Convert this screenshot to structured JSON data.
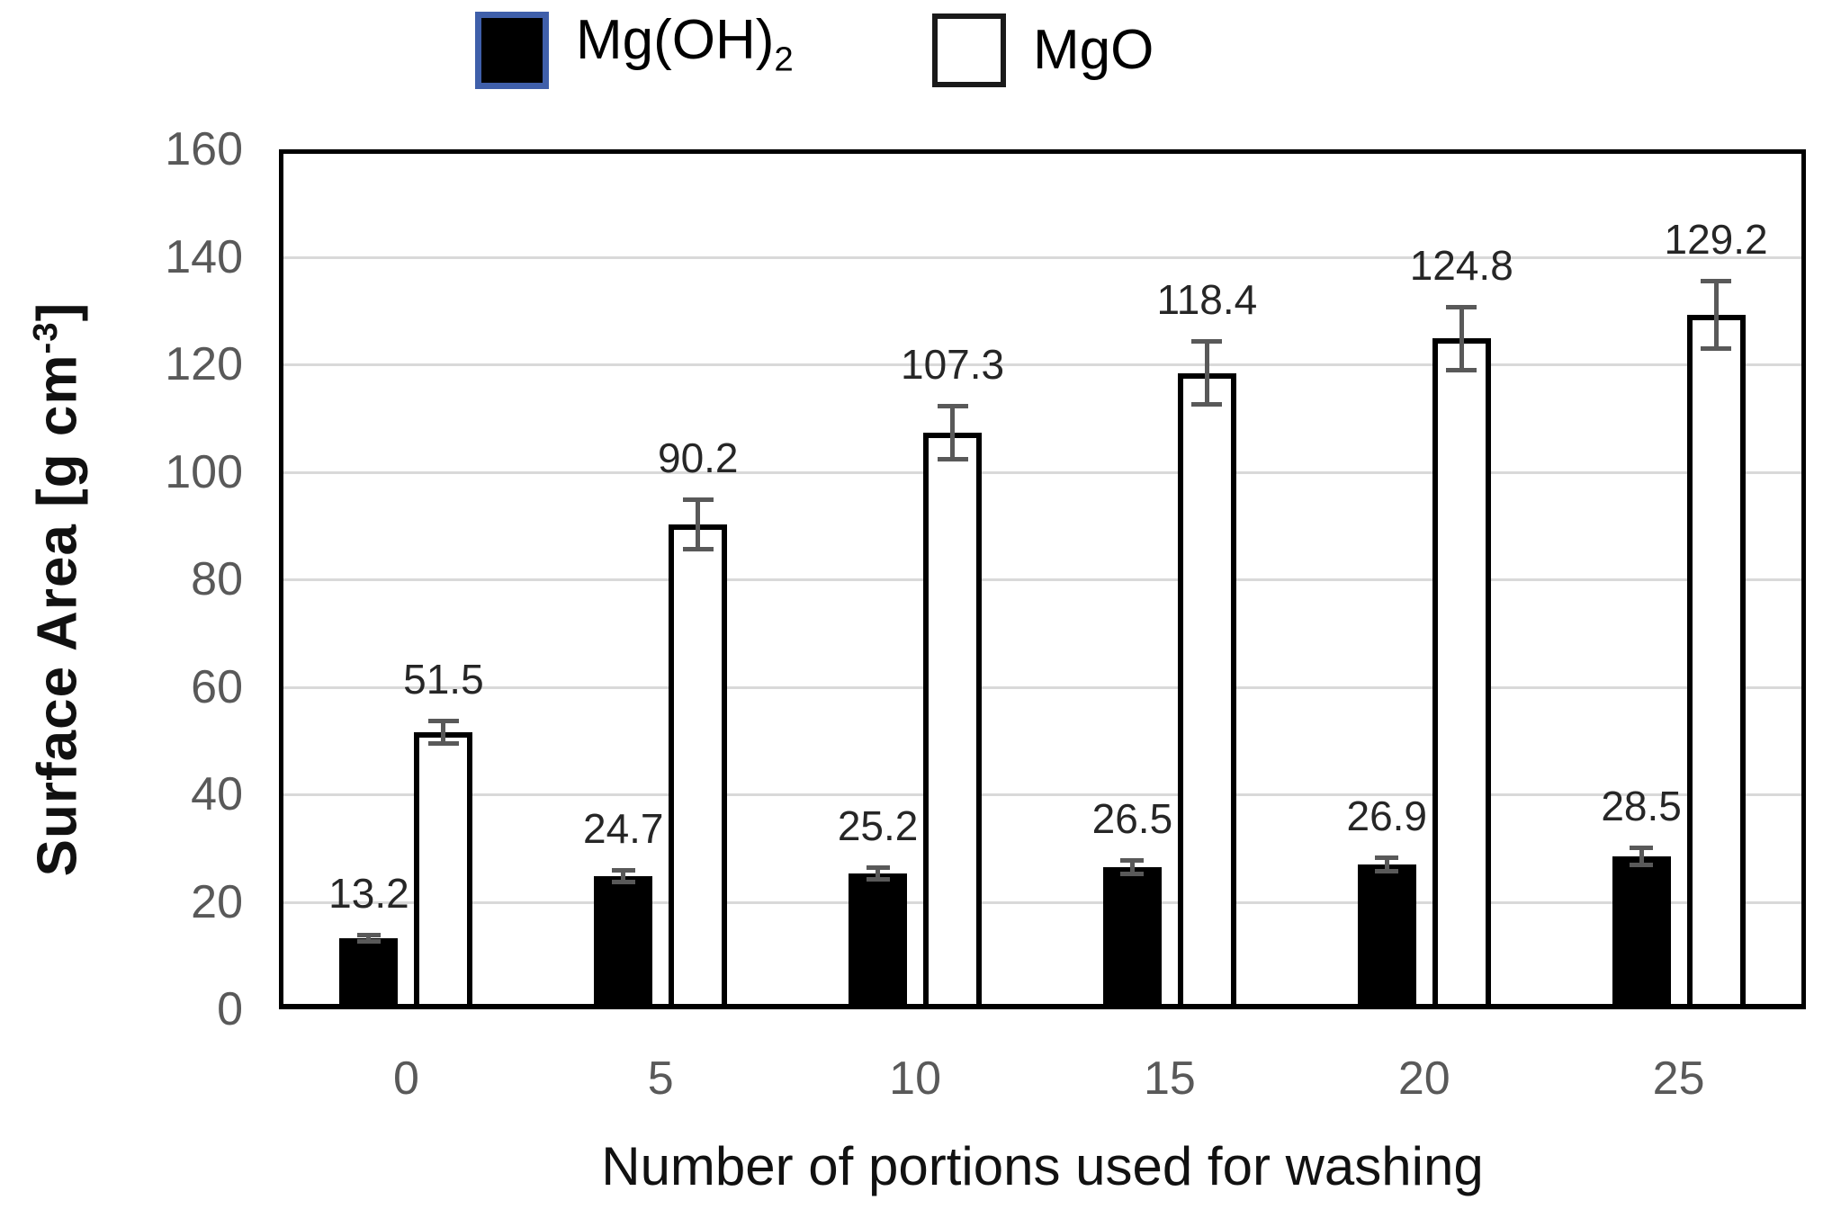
{
  "legend": {
    "series1": {
      "label_main": "Mg(OH)",
      "label_sub": "2"
    },
    "series2": {
      "label": "MgO"
    }
  },
  "y_axis": {
    "title_main": "Surface Area [g cm",
    "title_sup": "-3",
    "title_close": "]"
  },
  "x_axis": {
    "title": "Number of portions used for washing"
  },
  "chart_data": {
    "type": "bar",
    "title": "",
    "xlabel": "Number of portions used for washing",
    "ylabel": "Surface Area [g cm-3]",
    "categories": [
      "0",
      "5",
      "10",
      "15",
      "20",
      "25"
    ],
    "series": [
      {
        "name": "Mg(OH)2",
        "fill": "#000000",
        "values": [
          13.2,
          24.7,
          25.2,
          26.5,
          26.9,
          28.5
        ],
        "errors": [
          1.0,
          1.5,
          1.5,
          1.7,
          1.7,
          2.0
        ]
      },
      {
        "name": "MgO",
        "fill": "#ffffff",
        "values": [
          51.5,
          90.2,
          107.3,
          118.4,
          124.8,
          129.2
        ],
        "errors": [
          2.5,
          5.0,
          5.3,
          6.3,
          6.3,
          6.7
        ]
      }
    ],
    "data_labels": true,
    "ylim": [
      0,
      160
    ],
    "yticks": [
      0,
      20,
      40,
      60,
      80,
      100,
      120,
      140,
      160
    ],
    "gridlines": "horizontal",
    "legend_position": "top",
    "colors": {
      "tick_label": "#595959",
      "data_label": "#262626",
      "gridline": "#d9d9d9",
      "error_bar": "#595959",
      "plot_border": "#000000",
      "legend_selection_border": "#3f5faa"
    }
  }
}
